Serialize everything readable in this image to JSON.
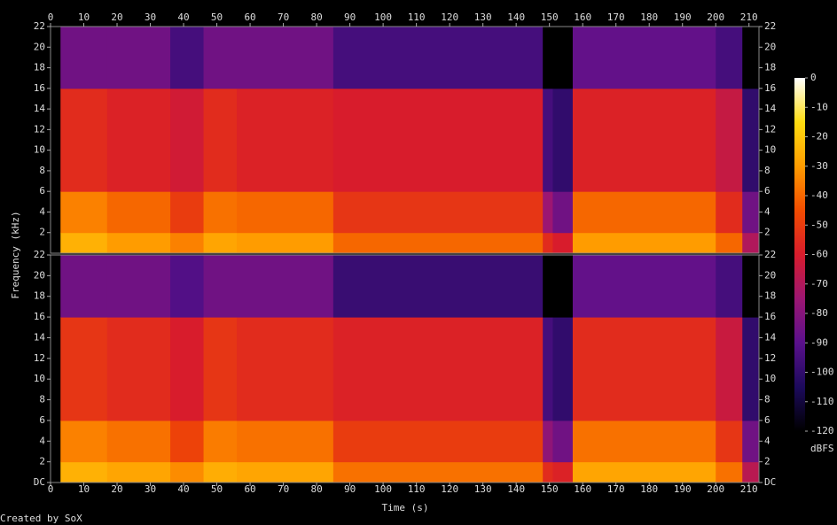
{
  "chart_data": {
    "type": "spectrogram",
    "x_label": "Time (s)",
    "y_label": "Frequency (kHz)",
    "colorbar_label": "dBFS",
    "footer": "Created by SoX",
    "xlim": [
      0,
      213
    ],
    "xticks": [
      0,
      10,
      20,
      30,
      40,
      50,
      60,
      70,
      80,
      90,
      100,
      110,
      120,
      130,
      140,
      150,
      160,
      170,
      180,
      190,
      200,
      210
    ],
    "ylim": [
      0,
      22
    ],
    "time_edges": [
      0,
      3,
      17,
      36,
      46,
      56,
      85,
      148,
      151,
      157,
      200,
      208,
      213
    ],
    "freq_edges": [
      0,
      2,
      6,
      16,
      22
    ],
    "zlim": [
      -120,
      0
    ],
    "zticks": [
      0,
      -10,
      -20,
      -30,
      -40,
      -50,
      -60,
      -70,
      -80,
      -90,
      -100,
      -110,
      -120
    ],
    "colormap": [
      "#000000",
      "#1c0a5c",
      "#5a108c",
      "#9c1672",
      "#d81c2c",
      "#f24c00",
      "#ff9c00",
      "#ffdc10",
      "#ffffff"
    ],
    "channels": [
      {
        "yticks": [
          2,
          4,
          6,
          8,
          10,
          12,
          14,
          16,
          18,
          20,
          22
        ],
        "levels": [
          [
            -120,
            -120,
            -120,
            -120
          ],
          [
            -25,
            -35,
            -55,
            -85
          ],
          [
            -30,
            -40,
            -58,
            -85
          ],
          [
            -35,
            -50,
            -62,
            -95
          ],
          [
            -28,
            -38,
            -55,
            -85
          ],
          [
            -30,
            -40,
            -58,
            -85
          ],
          [
            -40,
            -52,
            -60,
            -95
          ],
          [
            -55,
            -75,
            -95,
            -120
          ],
          [
            -60,
            -85,
            -100,
            -120
          ],
          [
            -30,
            -40,
            -58,
            -88
          ],
          [
            -40,
            -55,
            -65,
            -95
          ],
          [
            -70,
            -85,
            -100,
            -120
          ]
        ]
      },
      {
        "yticks": [
          {
            "value": 0,
            "label": "DC"
          },
          2,
          4,
          6,
          8,
          10,
          12,
          14,
          16,
          18,
          20,
          22
        ],
        "levels": [
          [
            -120,
            -120,
            -120,
            -120
          ],
          [
            -25,
            -35,
            -52,
            -85
          ],
          [
            -28,
            -38,
            -55,
            -85
          ],
          [
            -33,
            -48,
            -60,
            -92
          ],
          [
            -26,
            -36,
            -52,
            -85
          ],
          [
            -28,
            -38,
            -55,
            -85
          ],
          [
            -38,
            -50,
            -58,
            -98
          ],
          [
            -55,
            -78,
            -95,
            -120
          ],
          [
            -58,
            -85,
            -100,
            -120
          ],
          [
            -28,
            -38,
            -55,
            -88
          ],
          [
            -38,
            -52,
            -64,
            -95
          ],
          [
            -68,
            -85,
            -100,
            -120
          ]
        ]
      }
    ]
  }
}
